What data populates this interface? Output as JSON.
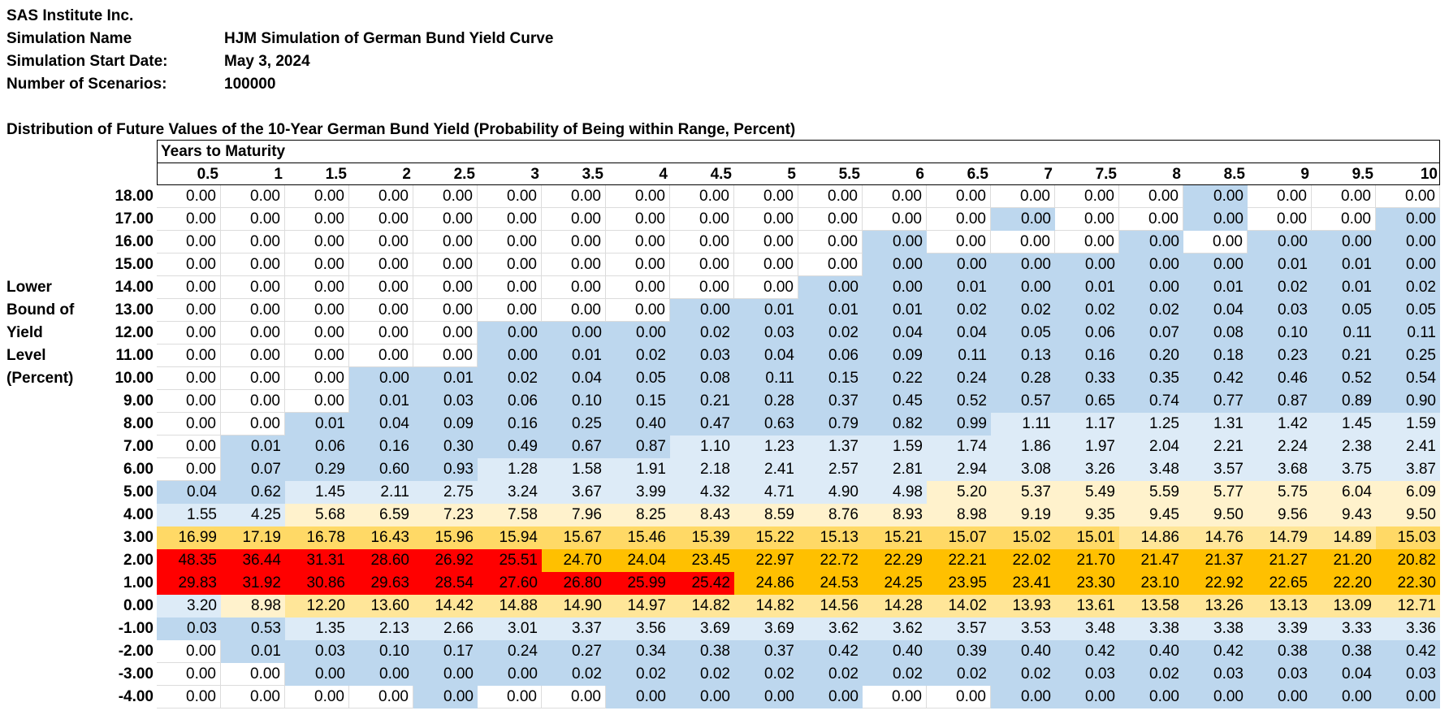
{
  "header": {
    "company": "SAS Institute Inc.",
    "fields": [
      {
        "label": "Simulation Name",
        "value": "HJM Simulation of German Bund Yield Curve"
      },
      {
        "label": "Simulation Start Date:",
        "value": "May 3, 2024"
      },
      {
        "label": "Number of Scenarios:",
        "value": "100000"
      }
    ]
  },
  "table": {
    "title": "Distribution of Future Values of the 10-Year German Bund Yield (Probability of Being within Range, Percent)",
    "column_group_label": "Years to Maturity",
    "columns": [
      "0.5",
      "1",
      "1.5",
      "2",
      "2.5",
      "3",
      "3.5",
      "4",
      "4.5",
      "5",
      "5.5",
      "6",
      "6.5",
      "7",
      "7.5",
      "8",
      "8.5",
      "9",
      "9.5",
      "10"
    ],
    "row_axis_label": [
      "Lower",
      "Bound of",
      "Yield",
      "Level",
      "(Percent)"
    ],
    "colors": {
      "w": "#FFFFFF",
      "b": "#BDD7EE",
      "l": "#DDEBF7",
      "y": "#FFF2CC",
      "m": "#FFE699",
      "g": "#FFD966",
      "o": "#FFC000",
      "r": "#FF0000"
    },
    "rows": [
      {
        "label": "18.00",
        "values": [
          "0.00",
          "0.00",
          "0.00",
          "0.00",
          "0.00",
          "0.00",
          "0.00",
          "0.00",
          "0.00",
          "0.00",
          "0.00",
          "0.00",
          "0.00",
          "0.00",
          "0.00",
          "0.00",
          "0.00",
          "0.00",
          "0.00",
          "0.00"
        ],
        "fill": "wwwwwwwwwwwwwwwwbwww"
      },
      {
        "label": "17.00",
        "values": [
          "0.00",
          "0.00",
          "0.00",
          "0.00",
          "0.00",
          "0.00",
          "0.00",
          "0.00",
          "0.00",
          "0.00",
          "0.00",
          "0.00",
          "0.00",
          "0.00",
          "0.00",
          "0.00",
          "0.00",
          "0.00",
          "0.00",
          "0.00"
        ],
        "fill": "wwwwwwwwwwwwwbwwbwwb"
      },
      {
        "label": "16.00",
        "values": [
          "0.00",
          "0.00",
          "0.00",
          "0.00",
          "0.00",
          "0.00",
          "0.00",
          "0.00",
          "0.00",
          "0.00",
          "0.00",
          "0.00",
          "0.00",
          "0.00",
          "0.00",
          "0.00",
          "0.00",
          "0.00",
          "0.00",
          "0.00"
        ],
        "fill": "wwwwwwwwwwwbwwwbwbbb"
      },
      {
        "label": "15.00",
        "values": [
          "0.00",
          "0.00",
          "0.00",
          "0.00",
          "0.00",
          "0.00",
          "0.00",
          "0.00",
          "0.00",
          "0.00",
          "0.00",
          "0.00",
          "0.00",
          "0.00",
          "0.00",
          "0.00",
          "0.00",
          "0.01",
          "0.01",
          "0.00"
        ],
        "fill": "wwwwwwwwwwwbbbbbbbbb"
      },
      {
        "label": "14.00",
        "values": [
          "0.00",
          "0.00",
          "0.00",
          "0.00",
          "0.00",
          "0.00",
          "0.00",
          "0.00",
          "0.00",
          "0.00",
          "0.00",
          "0.00",
          "0.01",
          "0.00",
          "0.01",
          "0.00",
          "0.01",
          "0.02",
          "0.01",
          "0.02"
        ],
        "fill": "wwwwwwwwwwbbbbbbbbbb"
      },
      {
        "label": "13.00",
        "values": [
          "0.00",
          "0.00",
          "0.00",
          "0.00",
          "0.00",
          "0.00",
          "0.00",
          "0.00",
          "0.00",
          "0.01",
          "0.01",
          "0.01",
          "0.02",
          "0.02",
          "0.02",
          "0.02",
          "0.04",
          "0.03",
          "0.05",
          "0.05"
        ],
        "fill": "wwwwwwwwbbbbbbbbbbbb"
      },
      {
        "label": "12.00",
        "values": [
          "0.00",
          "0.00",
          "0.00",
          "0.00",
          "0.00",
          "0.00",
          "0.00",
          "0.00",
          "0.02",
          "0.03",
          "0.02",
          "0.04",
          "0.04",
          "0.05",
          "0.06",
          "0.07",
          "0.08",
          "0.10",
          "0.11",
          "0.11"
        ],
        "fill": "wwwwwbbbbbbbbbbbbbbb"
      },
      {
        "label": "11.00",
        "values": [
          "0.00",
          "0.00",
          "0.00",
          "0.00",
          "0.00",
          "0.00",
          "0.01",
          "0.02",
          "0.03",
          "0.04",
          "0.06",
          "0.09",
          "0.11",
          "0.13",
          "0.16",
          "0.20",
          "0.18",
          "0.23",
          "0.21",
          "0.25"
        ],
        "fill": "wwwwwbbbbbbbbbbbbbbb"
      },
      {
        "label": "10.00",
        "values": [
          "0.00",
          "0.00",
          "0.00",
          "0.00",
          "0.01",
          "0.02",
          "0.04",
          "0.05",
          "0.08",
          "0.11",
          "0.15",
          "0.22",
          "0.24",
          "0.28",
          "0.33",
          "0.35",
          "0.42",
          "0.46",
          "0.52",
          "0.54"
        ],
        "fill": "wwwbbbbbbbbbbbbbbbbb"
      },
      {
        "label": "9.00",
        "values": [
          "0.00",
          "0.00",
          "0.00",
          "0.01",
          "0.03",
          "0.06",
          "0.10",
          "0.15",
          "0.21",
          "0.28",
          "0.37",
          "0.45",
          "0.52",
          "0.57",
          "0.65",
          "0.74",
          "0.77",
          "0.87",
          "0.89",
          "0.90"
        ],
        "fill": "wwwbbbbbbbbbbbbbbbbb"
      },
      {
        "label": "8.00",
        "values": [
          "0.00",
          "0.00",
          "0.01",
          "0.04",
          "0.09",
          "0.16",
          "0.25",
          "0.40",
          "0.47",
          "0.63",
          "0.79",
          "0.82",
          "0.99",
          "1.11",
          "1.17",
          "1.25",
          "1.31",
          "1.42",
          "1.45",
          "1.59"
        ],
        "fill": "wwbbbbbbbbbbblllllll"
      },
      {
        "label": "7.00",
        "values": [
          "0.00",
          "0.01",
          "0.06",
          "0.16",
          "0.30",
          "0.49",
          "0.67",
          "0.87",
          "1.10",
          "1.23",
          "1.37",
          "1.59",
          "1.74",
          "1.86",
          "1.97",
          "2.04",
          "2.21",
          "2.24",
          "2.38",
          "2.41"
        ],
        "fill": "wbbbbbbbllllllllllll"
      },
      {
        "label": "6.00",
        "values": [
          "0.00",
          "0.07",
          "0.29",
          "0.60",
          "0.93",
          "1.28",
          "1.58",
          "1.91",
          "2.18",
          "2.41",
          "2.57",
          "2.81",
          "2.94",
          "3.08",
          "3.26",
          "3.48",
          "3.57",
          "3.68",
          "3.75",
          "3.87"
        ],
        "fill": "wbbbblllllllllllllll"
      },
      {
        "label": "5.00",
        "values": [
          "0.04",
          "0.62",
          "1.45",
          "2.11",
          "2.75",
          "3.24",
          "3.67",
          "3.99",
          "4.32",
          "4.71",
          "4.90",
          "4.98",
          "5.20",
          "5.37",
          "5.49",
          "5.59",
          "5.77",
          "5.75",
          "6.04",
          "6.09"
        ],
        "fill": "bbllllllllllyyyyyyyy"
      },
      {
        "label": "4.00",
        "values": [
          "1.55",
          "4.25",
          "5.68",
          "6.59",
          "7.23",
          "7.58",
          "7.96",
          "8.25",
          "8.43",
          "8.59",
          "8.76",
          "8.93",
          "8.98",
          "9.19",
          "9.35",
          "9.45",
          "9.50",
          "9.56",
          "9.43",
          "9.50"
        ],
        "fill": "llyyyyyyyyyyyyyyyyyy"
      },
      {
        "label": "3.00",
        "values": [
          "16.99",
          "17.19",
          "16.78",
          "16.43",
          "15.96",
          "15.94",
          "15.67",
          "15.46",
          "15.39",
          "15.22",
          "15.13",
          "15.21",
          "15.07",
          "15.02",
          "15.01",
          "14.86",
          "14.76",
          "14.79",
          "14.89",
          "15.03"
        ],
        "fill": "gggggggggggggggmmmmg"
      },
      {
        "label": "2.00",
        "values": [
          "48.35",
          "36.44",
          "31.31",
          "28.60",
          "26.92",
          "25.51",
          "24.70",
          "24.04",
          "23.45",
          "22.97",
          "22.72",
          "22.29",
          "22.21",
          "22.02",
          "21.70",
          "21.47",
          "21.37",
          "21.27",
          "21.20",
          "20.82"
        ],
        "fill": "rrrrrroooooooooooooo"
      },
      {
        "label": "1.00",
        "values": [
          "29.83",
          "31.92",
          "30.86",
          "29.63",
          "28.54",
          "27.60",
          "26.80",
          "25.99",
          "25.42",
          "24.86",
          "24.53",
          "24.25",
          "23.95",
          "23.41",
          "23.30",
          "23.10",
          "22.92",
          "22.65",
          "22.20",
          "22.30"
        ],
        "fill": "rrrrrrrrrooooooooooo"
      },
      {
        "label": "0.00",
        "values": [
          "3.20",
          "8.98",
          "12.20",
          "13.60",
          "14.42",
          "14.88",
          "14.90",
          "14.97",
          "14.82",
          "14.82",
          "14.56",
          "14.28",
          "14.02",
          "13.93",
          "13.61",
          "13.58",
          "13.26",
          "13.13",
          "13.09",
          "12.71"
        ],
        "fill": "lymmmmmmmmmmmmmmmmmm"
      },
      {
        "label": "-1.00",
        "values": [
          "0.03",
          "0.53",
          "1.35",
          "2.13",
          "2.66",
          "3.01",
          "3.37",
          "3.56",
          "3.69",
          "3.69",
          "3.62",
          "3.62",
          "3.57",
          "3.53",
          "3.48",
          "3.38",
          "3.38",
          "3.39",
          "3.33",
          "3.36"
        ],
        "fill": "bbllllllllllllllllll"
      },
      {
        "label": "-2.00",
        "values": [
          "0.00",
          "0.01",
          "0.03",
          "0.10",
          "0.17",
          "0.24",
          "0.27",
          "0.34",
          "0.38",
          "0.37",
          "0.42",
          "0.40",
          "0.39",
          "0.40",
          "0.42",
          "0.40",
          "0.42",
          "0.38",
          "0.38",
          "0.42"
        ],
        "fill": "wbbbbbbbbbbbbbbbbbbb"
      },
      {
        "label": "-3.00",
        "values": [
          "0.00",
          "0.00",
          "0.00",
          "0.00",
          "0.00",
          "0.00",
          "0.02",
          "0.02",
          "0.02",
          "0.02",
          "0.02",
          "0.02",
          "0.02",
          "0.02",
          "0.03",
          "0.02",
          "0.03",
          "0.03",
          "0.04",
          "0.03"
        ],
        "fill": "wwbbbbbbbbbbbbbbbbbb"
      },
      {
        "label": "-4.00",
        "values": [
          "0.00",
          "0.00",
          "0.00",
          "0.00",
          "0.00",
          "0.00",
          "0.00",
          "0.00",
          "0.00",
          "0.00",
          "0.00",
          "0.00",
          "0.00",
          "0.00",
          "0.00",
          "0.00",
          "0.00",
          "0.00",
          "0.00",
          "0.00"
        ],
        "fill": "wwwwbwwbbbbwwbbbbbbb"
      }
    ]
  }
}
